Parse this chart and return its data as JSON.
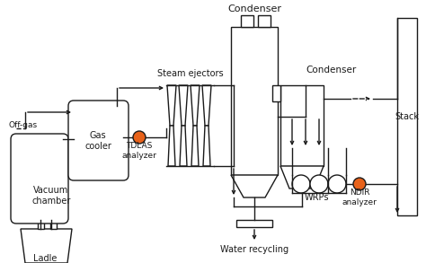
{
  "bg_color": "#ffffff",
  "line_color": "#1a1a1a",
  "orange_color": "#E8621A",
  "figsize": [
    4.74,
    2.93
  ],
  "dpi": 100,
  "labels": {
    "off_gas": "Off-gas",
    "gas_cooler": "Gas\ncooler",
    "tdlas": "TDLAS\nanalyzer",
    "vacuum": "Vacuum\nchamber",
    "ladle": "Ladle",
    "steam": "Steam ejectors",
    "condenser1": "Condenser",
    "condenser2": "Condenser",
    "water": "Water recycling",
    "wrps": "WRPs",
    "ndir": "NDIR\nanalyzer",
    "stack": "Stack"
  }
}
